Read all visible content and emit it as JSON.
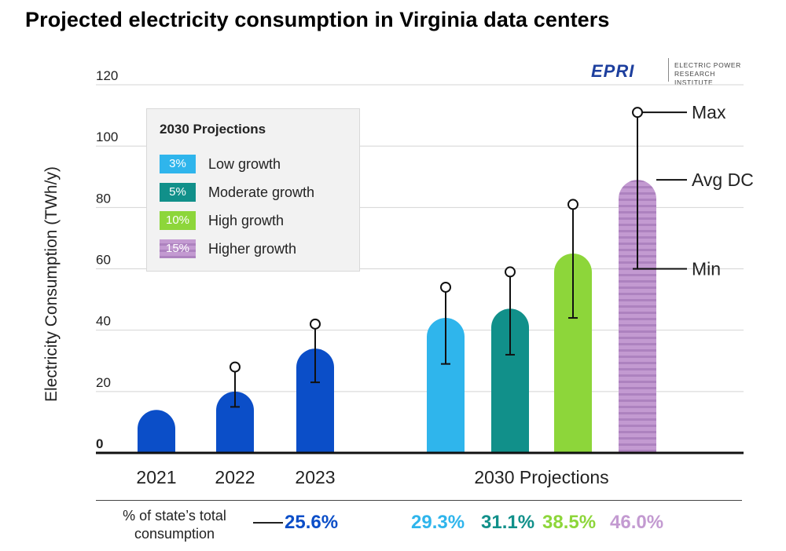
{
  "chart_data": {
    "type": "bar",
    "title": "Projected electricity consumption in Virginia data centers",
    "ylabel": "Electricity Consumption (TWh/y)",
    "ylim": [
      0,
      120
    ],
    "yticks": [
      "0",
      "20",
      "40",
      "60",
      "80",
      "100",
      "120"
    ],
    "grid": true,
    "legend": {
      "title": "2030 Projections",
      "position": "top-left",
      "items": [
        {
          "swatch": "3%",
          "label": "Low growth",
          "color": "#2fb5ec"
        },
        {
          "swatch": "5%",
          "label": "Moderate growth",
          "color": "#11908a"
        },
        {
          "swatch": "10%",
          "label": "High growth",
          "color": "#8dd63a"
        },
        {
          "swatch": "15%",
          "label": "Higher growth",
          "color": "#c39ad1"
        }
      ]
    },
    "group_labels": [
      "2021",
      "2022",
      "2023",
      "2030 Projections"
    ],
    "bars": [
      {
        "category": "2021",
        "value": 14,
        "min": null,
        "max": null,
        "color": "#0b4ec8"
      },
      {
        "category": "2022",
        "value": 20,
        "min": 15,
        "max": 28,
        "color": "#0b4ec8"
      },
      {
        "category": "2023",
        "value": 34,
        "min": 23,
        "max": 42,
        "color": "#0b4ec8"
      },
      {
        "category": "3%",
        "value": 44,
        "min": 29,
        "max": 54,
        "color": "#2fb5ec"
      },
      {
        "category": "5%",
        "value": 47,
        "min": 32,
        "max": 59,
        "color": "#11908a"
      },
      {
        "category": "10%",
        "value": 65,
        "min": 44,
        "max": 81,
        "color": "#8dd63a"
      },
      {
        "category": "15%",
        "value": 89,
        "min": 60,
        "max": 111,
        "color": "#c39ad1",
        "striped": true
      }
    ],
    "annotations": [
      "Max",
      "Avg DC",
      "Min"
    ],
    "share_label": "% of state’s total consumption",
    "share_values": [
      {
        "value": "25.6%",
        "color": "#0b4ec8"
      },
      {
        "value": "29.3%",
        "color": "#2fb5ec"
      },
      {
        "value": "31.1%",
        "color": "#11908a"
      },
      {
        "value": "38.5%",
        "color": "#8dd63a"
      },
      {
        "value": "46.0%",
        "color": "#c39ad1"
      }
    ]
  },
  "logo": {
    "mark": "EPRI",
    "line1": "ELECTRIC POWER",
    "line2": "RESEARCH INSTITUTE"
  }
}
